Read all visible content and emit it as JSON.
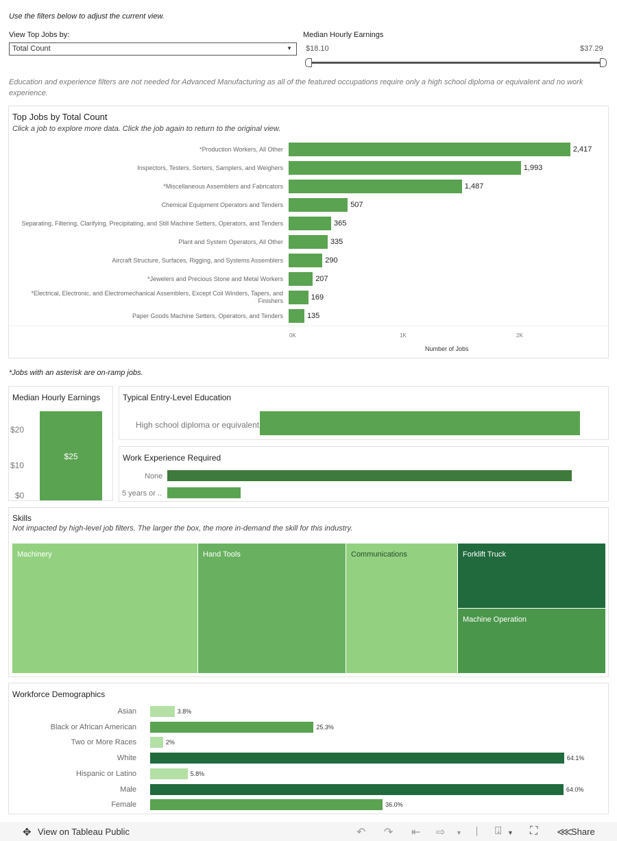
{
  "intro_text": "Use the filters below to adjust the current view.",
  "filter": {
    "label": "View Top Jobs by:",
    "selected": "Total Count",
    "earnings_label": "Median Hourly Earnings",
    "earnings_min": "$18.10",
    "earnings_max": "$37.29"
  },
  "note_text": "Education and experience filters are not needed for Advanced Manufacturing as all of the featured occupations require only a high school diploma or equivalent and no work experience.",
  "top_jobs": {
    "title": "Top Jobs by Total Count",
    "subtitle": "Click a job to explore more data. Click the job again to return to the original view.",
    "axis_label": "Number of Jobs",
    "ticks": [
      "0K",
      "1K",
      "2K"
    ]
  },
  "asterisk_note": "*Jobs with an asterisk are on-ramp jobs.",
  "earnings_panel": {
    "title": "Median Hourly Earnings",
    "ticks": [
      "$20",
      "$10",
      "$0"
    ],
    "value_label": "$25"
  },
  "education_panel": {
    "title": "Typical Entry-Level Education",
    "label": "High school diploma or equivalent"
  },
  "experience_panel": {
    "title": "Work Experience Required",
    "labels": [
      "None",
      "5 years or .."
    ]
  },
  "skills_panel": {
    "title": "Skills",
    "subtitle": "Not impacted by high-level job filters. The larger the box, the more in-demand the skill for this industry.",
    "items": [
      "Machinery",
      "Hand Tools",
      "Communications",
      "Forklift Truck",
      "Machine Operation"
    ]
  },
  "demographics_panel": {
    "title": "Workforce Demographics"
  },
  "footer": {
    "view_label": "View on Tableau Public",
    "share_label": "Share"
  },
  "colors": {
    "bar": "#5aa351",
    "dark": "#216a3e",
    "light": "#b4e0a6"
  },
  "chart_data": [
    {
      "type": "bar",
      "title": "Top Jobs by Total Count",
      "xlabel": "Number of Jobs",
      "orientation": "horizontal",
      "xlim": [
        0,
        2600
      ],
      "categories": [
        "*Production Workers, All Other",
        "Inspectors, Testers, Sorters, Samplers, and Weighers",
        "*Miscellaneous Assemblers and Fabricators",
        "Chemical Equipment Operators and Tenders",
        "Separating, Filtering, Clarifying, Precipitating, and Still Machine Setters, Operators, and Tenders",
        "Plant and System Operators, All Other",
        "Aircraft Structure, Surfaces, Rigging, and Systems Assemblers",
        "*Jewelers and Precious Stone and Metal Workers",
        "*Electrical, Electronic, and Electromechanical Assemblers, Except Coil Winders, Tapers, and Finishers",
        "Paper Goods Machine Setters, Operators, and Tenders"
      ],
      "values": [
        2417,
        1993,
        1487,
        507,
        365,
        335,
        290,
        207,
        169,
        135
      ],
      "value_labels": [
        "2,417",
        "1,993",
        "1,487",
        "507",
        "365",
        "335",
        "290",
        "207",
        "169",
        "135"
      ]
    },
    {
      "type": "bar",
      "title": "Median Hourly Earnings",
      "categories": [
        ""
      ],
      "values": [
        25
      ],
      "ylim": [
        0,
        25
      ]
    },
    {
      "type": "bar",
      "title": "Workforce Demographics",
      "orientation": "horizontal",
      "categories": [
        "Asian",
        "Black or African American",
        "Two or More Races",
        "White",
        "Hispanic or Latino",
        "Male",
        "Female"
      ],
      "values": [
        3.8,
        25.3,
        2,
        64.1,
        5.8,
        64.0,
        36.0
      ],
      "value_labels": [
        "3.8%",
        "25.3%",
        "2%",
        "64.1%",
        "5.8%",
        "64.0%",
        "36.0%"
      ],
      "shades": [
        "light",
        "mid",
        "light",
        "dark",
        "light",
        "dark",
        "mid"
      ]
    }
  ]
}
